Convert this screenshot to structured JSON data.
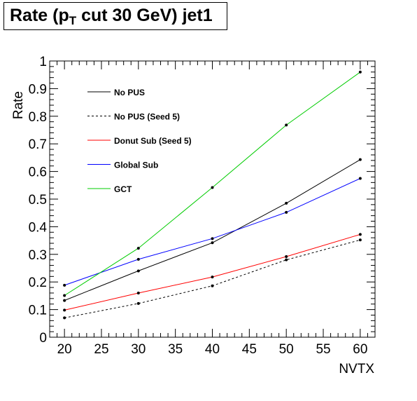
{
  "chart_data": {
    "type": "line",
    "title": {
      "prefix": "Rate (p",
      "sub": "T",
      "suffix": " cut 30 GeV) jet1"
    },
    "xlabel": "NVTX",
    "ylabel": "Rate",
    "xlim": [
      18,
      62
    ],
    "ylim": [
      0,
      1
    ],
    "x_ticks": [
      "20",
      "25",
      "30",
      "35",
      "40",
      "45",
      "50",
      "55",
      "60"
    ],
    "y_ticks": [
      "0",
      "0.1",
      "0.2",
      "0.3",
      "0.4",
      "0.5",
      "0.6",
      "0.7",
      "0.8",
      "0.9",
      "1"
    ],
    "x": [
      20,
      30,
      40,
      50,
      60
    ],
    "grid": false,
    "legend_position": "top-left",
    "series": [
      {
        "name": "No PUS",
        "color": "#000000",
        "dashed": false,
        "values": [
          0.133,
          0.24,
          0.342,
          0.485,
          0.643
        ]
      },
      {
        "name": "No PUS (Seed 5)",
        "color": "#000000",
        "dashed": true,
        "values": [
          0.07,
          0.122,
          0.186,
          0.28,
          0.352
        ]
      },
      {
        "name": "Donut Sub (Seed 5)",
        "color": "#ff0000",
        "dashed": false,
        "values": [
          0.098,
          0.16,
          0.218,
          0.292,
          0.372
        ]
      },
      {
        "name": "Global Sub",
        "color": "#0000ff",
        "dashed": false,
        "values": [
          0.188,
          0.282,
          0.357,
          0.452,
          0.575
        ]
      },
      {
        "name": "GCT",
        "color": "#00cc00",
        "dashed": false,
        "values": [
          0.151,
          0.322,
          0.542,
          0.768,
          0.96
        ]
      }
    ]
  }
}
